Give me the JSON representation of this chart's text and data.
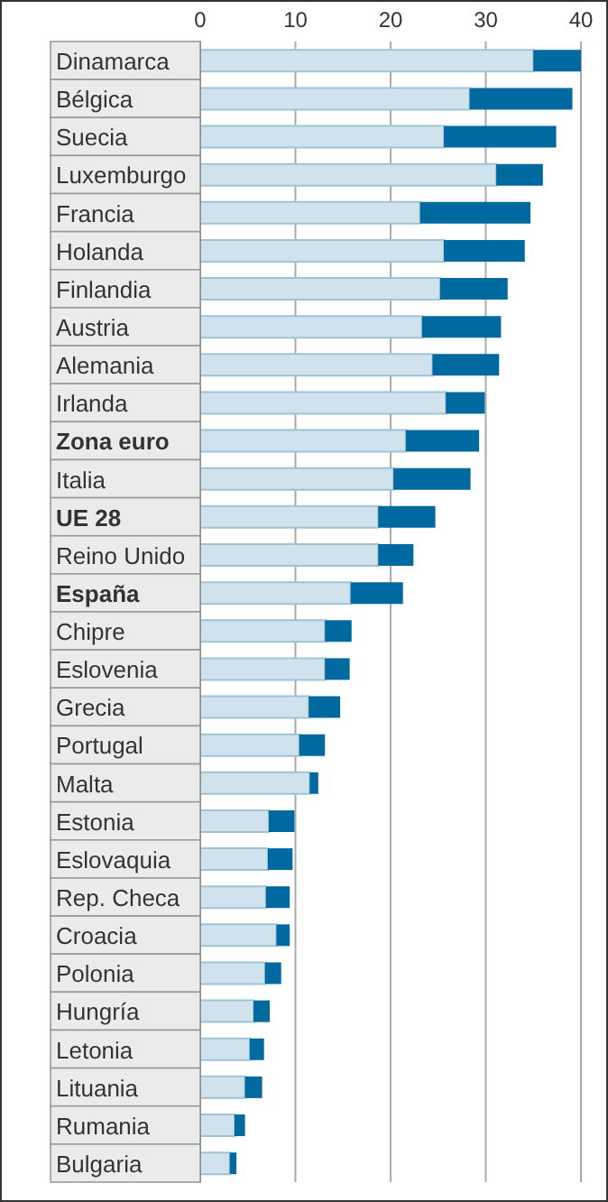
{
  "chart_data": {
    "type": "bar",
    "orientation": "horizontal",
    "stacked": true,
    "categories": [
      "Dinamarca",
      "Bélgica",
      "Suecia",
      "Luxemburgo",
      "Francia",
      "Holanda",
      "Finlandia",
      "Austria",
      "Alemania",
      "Irlanda",
      "Zona euro",
      "Italia",
      "UE 28",
      "Reino Unido",
      "España",
      "Chipre",
      "Eslovenia",
      "Grecia",
      "Portugal",
      "Malta",
      "Estonia",
      "Eslovaquia",
      "Rep. Checa",
      "Croacia",
      "Polonia",
      "Hungría",
      "Letonia",
      "Lituania",
      "Rumania",
      "Bulgaria"
    ],
    "series": [
      {
        "color": "#d0e3ec",
        "values": [
          35.0,
          28.3,
          25.6,
          31.1,
          23.1,
          25.6,
          25.2,
          23.3,
          24.4,
          25.8,
          21.6,
          20.3,
          18.7,
          18.7,
          15.8,
          13.1,
          13.1,
          11.4,
          10.4,
          11.5,
          7.2,
          7.1,
          6.9,
          8.0,
          6.8,
          5.6,
          5.2,
          4.7,
          3.6,
          3.1
        ]
      },
      {
        "color": "#0069a0",
        "values": [
          5.0,
          10.8,
          11.8,
          4.9,
          11.6,
          8.5,
          7.1,
          8.3,
          7.0,
          4.1,
          7.7,
          8.1,
          6.0,
          3.7,
          5.5,
          2.8,
          2.6,
          3.3,
          2.7,
          0.9,
          2.7,
          2.6,
          2.5,
          1.4,
          1.7,
          1.7,
          1.5,
          1.8,
          1.1,
          0.7
        ]
      }
    ],
    "xlim": [
      0,
      40
    ],
    "xticks": [
      0,
      10,
      20,
      30,
      40
    ],
    "grid": "x"
  }
}
